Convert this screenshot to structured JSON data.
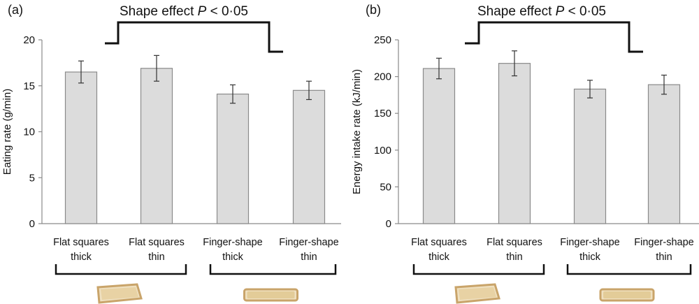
{
  "chart_data": [
    {
      "type": "bar",
      "panel_label": "(a)",
      "significance": {
        "text": "Shape effect",
        "p_text": "P",
        "threshold": "< 0·05"
      },
      "ylabel": "Eating rate (g/min)",
      "ylim": [
        0,
        20
      ],
      "yticks": [
        "0",
        "5",
        "10",
        "15",
        "20"
      ],
      "ytick_values": [
        0,
        5,
        10,
        15,
        20
      ],
      "categories": [
        {
          "line1": "Flat squares",
          "line2": "thick"
        },
        {
          "line1": "Flat squares",
          "line2": "thin"
        },
        {
          "line1": "Finger-shape",
          "line2": "thick"
        },
        {
          "line1": "Finger-shape",
          "line2": "thin"
        }
      ],
      "values": [
        16.5,
        16.9,
        14.1,
        14.5
      ],
      "errors": [
        1.2,
        1.4,
        1.0,
        1.0
      ],
      "groups": [
        {
          "name": "flat-squares",
          "image": "bread-square"
        },
        {
          "name": "finger-shape",
          "image": "bread-finger"
        }
      ],
      "grid": false
    },
    {
      "type": "bar",
      "panel_label": "(b)",
      "significance": {
        "text": "Shape effect",
        "p_text": "P",
        "threshold": "< 0·05"
      },
      "ylabel": "Energy intake rate (kJ/min)",
      "ylim": [
        0,
        250
      ],
      "yticks": [
        "0",
        "50",
        "100",
        "150",
        "200",
        "250"
      ],
      "ytick_values": [
        0,
        50,
        100,
        150,
        200,
        250
      ],
      "categories": [
        {
          "line1": "Flat squares",
          "line2": "thick"
        },
        {
          "line1": "Flat squares",
          "line2": "thin"
        },
        {
          "line1": "Finger-shape",
          "line2": "thick"
        },
        {
          "line1": "Finger-shape",
          "line2": "thin"
        }
      ],
      "values": [
        211,
        218,
        183,
        189
      ],
      "errors": [
        14,
        17,
        12,
        13
      ],
      "groups": [
        {
          "name": "flat-squares",
          "image": "bread-square"
        },
        {
          "name": "finger-shape",
          "image": "bread-finger"
        }
      ],
      "grid": false
    }
  ],
  "colors": {
    "bar_fill": "#dcdcdc",
    "bar_stroke": "#8a8a8a",
    "axis": "#8a8a8a",
    "text": "#111111",
    "bread_crust": "#c9a46a",
    "bread_crumb": "#efe0c0"
  }
}
